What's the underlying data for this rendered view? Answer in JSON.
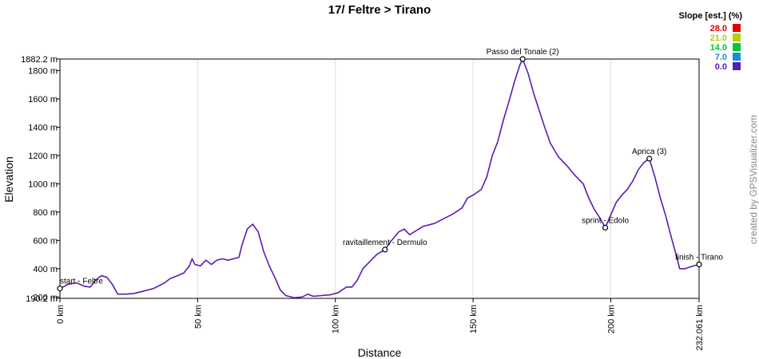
{
  "chart_data": {
    "type": "line",
    "title": "17/ Feltre > Tirano",
    "x_label": "Distance",
    "y_label": "Elevation",
    "watermark": "created by GPSVisualizer.com",
    "xlim": [
      0,
      232.061
    ],
    "ylim": [
      190.2,
      1882.2
    ],
    "xticks": [
      {
        "value": 0,
        "label": "0 km"
      },
      {
        "value": 50,
        "label": "50 km"
      },
      {
        "value": 100,
        "label": "100 km"
      },
      {
        "value": 150,
        "label": "150 km"
      },
      {
        "value": 200,
        "label": "200 km"
      },
      {
        "value": 232.061,
        "label": "232.061 km"
      }
    ],
    "yticks": [
      {
        "value": 190.2,
        "label": "190.2 m"
      },
      {
        "value": 200,
        "label": "200 m"
      },
      {
        "value": 400,
        "label": "400 m"
      },
      {
        "value": 600,
        "label": "600 m"
      },
      {
        "value": 800,
        "label": "800 m"
      },
      {
        "value": 1000,
        "label": "1000 m"
      },
      {
        "value": 1200,
        "label": "1200 m"
      },
      {
        "value": 1400,
        "label": "1400 m"
      },
      {
        "value": 1600,
        "label": "1600 m"
      },
      {
        "value": 1800,
        "label": "1800 m"
      },
      {
        "value": 1882.2,
        "label": "1882.2 m"
      }
    ],
    "grid": true,
    "x": [
      0,
      3,
      6,
      9,
      11,
      13,
      15,
      17,
      19,
      21,
      24,
      27,
      30,
      34,
      38,
      40,
      42,
      45,
      47,
      48,
      49,
      51,
      53,
      55,
      57,
      59,
      61,
      63,
      65,
      66,
      68,
      70,
      72,
      74,
      76,
      78,
      80,
      82,
      85,
      88,
      90,
      92,
      95,
      98,
      101,
      104,
      106,
      108,
      110,
      112,
      115,
      118,
      120,
      123,
      125,
      127,
      129,
      132,
      136,
      140,
      143,
      146,
      148,
      150,
      153,
      155,
      157,
      159,
      161,
      163,
      165,
      167,
      168,
      170,
      172,
      174,
      176,
      178,
      181,
      184,
      187,
      190,
      192,
      194,
      196,
      198,
      200,
      202,
      204,
      206,
      208,
      210,
      212,
      214,
      216,
      218,
      220,
      222,
      224,
      225,
      227,
      230,
      232.061
    ],
    "series": [
      {
        "color": "#5a1ab4",
        "values": [
          260,
          290,
          300,
          275,
          270,
          320,
          350,
          340,
          290,
          220,
          220,
          225,
          240,
          260,
          300,
          330,
          345,
          370,
          420,
          470,
          430,
          420,
          460,
          430,
          460,
          470,
          460,
          470,
          480,
          560,
          680,
          715,
          660,
          520,
          420,
          340,
          250,
          210,
          195,
          200,
          220,
          205,
          210,
          215,
          230,
          270,
          270,
          320,
          400,
          440,
          500,
          535,
          590,
          660,
          680,
          640,
          665,
          700,
          720,
          760,
          790,
          830,
          900,
          920,
          960,
          1050,
          1200,
          1300,
          1450,
          1580,
          1720,
          1840,
          1882,
          1780,
          1640,
          1520,
          1400,
          1290,
          1190,
          1130,
          1060,
          1000,
          900,
          820,
          760,
          690,
          780,
          870,
          920,
          960,
          1020,
          1100,
          1150,
          1178,
          1050,
          900,
          770,
          620,
          480,
          400,
          400,
          420,
          430
        ]
      }
    ],
    "annotations": [
      {
        "label": "start - Feltre",
        "x": 0,
        "y": 260
      },
      {
        "label": "ravitaillement - Dermulo",
        "x": 118,
        "y": 535
      },
      {
        "label": "Passo del Tonale (2)",
        "x": 168,
        "y": 1882
      },
      {
        "label": "sprint - Edolo",
        "x": 198,
        "y": 690
      },
      {
        "label": "Aprica (3)",
        "x": 214,
        "y": 1178
      },
      {
        "label": "finish - Tirano",
        "x": 232.061,
        "y": 430
      }
    ],
    "slope_legend": {
      "title": "Slope [est.] (%)",
      "items": [
        {
          "label": "28.0",
          "color": "#e00000"
        },
        {
          "label": "21.0",
          "color": "#b4d200"
        },
        {
          "label": "14.0",
          "color": "#00c832"
        },
        {
          "label": "7.0",
          "color": "#1e8cd2"
        },
        {
          "label": "0.0",
          "color": "#5a1ab4"
        }
      ]
    }
  }
}
